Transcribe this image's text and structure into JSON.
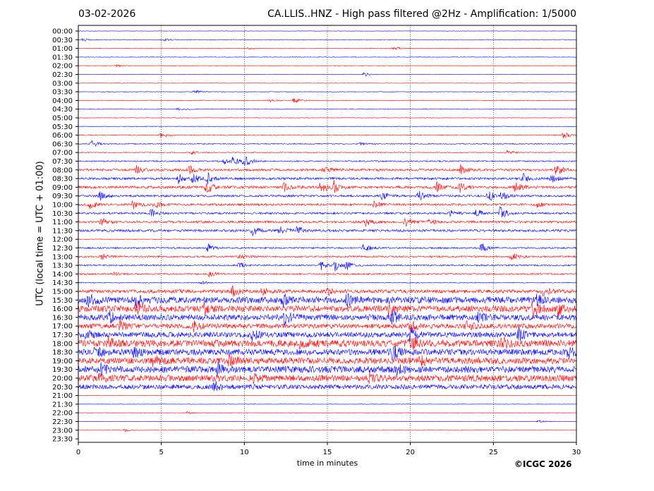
{
  "header": {
    "date": "03-02-2026",
    "title": "CA.LLIS..HNZ - High pass filtered @2Hz - Amplification: 1/5000"
  },
  "footer": {
    "copyright": "©ICGC 2026"
  },
  "chart_data": {
    "type": "line",
    "title": "CA.LLIS..HNZ - High pass filtered @2Hz - Amplification: 1/5000",
    "xlabel": "time in minutes",
    "ylabel": "UTC (local time = UTC + 01:00)",
    "xlim": [
      0,
      30
    ],
    "x_ticks": [
      0,
      5,
      10,
      15,
      20,
      25,
      30
    ],
    "grid": "vertical dotted lines every 5 minutes",
    "series_colors": [
      "#0000ff",
      "#ff0000"
    ],
    "rows": [
      {
        "label": "00:00",
        "color": "#0000ff",
        "level": 0.3,
        "events": []
      },
      {
        "label": "00:30",
        "color": "#0000ff",
        "level": 0.4,
        "events": [
          [
            0.3,
            2
          ],
          [
            5.2,
            2
          ]
        ]
      },
      {
        "label": "01:00",
        "color": "#ff0000",
        "level": 0.4,
        "events": [
          [
            10.3,
            2
          ],
          [
            19.0,
            3
          ]
        ]
      },
      {
        "label": "01:30",
        "color": "#0000ff",
        "level": 0.4,
        "events": []
      },
      {
        "label": "02:00",
        "color": "#ff0000",
        "level": 0.3,
        "events": [
          [
            2.3,
            2
          ]
        ]
      },
      {
        "label": "02:30",
        "color": "#0000ff",
        "level": 0.3,
        "events": [
          [
            17.2,
            3
          ]
        ]
      },
      {
        "label": "03:00",
        "color": "#ff0000",
        "level": 0.3,
        "events": []
      },
      {
        "label": "03:30",
        "color": "#0000ff",
        "level": 0.4,
        "events": [
          [
            7.0,
            3
          ]
        ]
      },
      {
        "label": "04:00",
        "color": "#ff0000",
        "level": 0.5,
        "events": [
          [
            13.0,
            4
          ],
          [
            11.5,
            2
          ]
        ]
      },
      {
        "label": "04:30",
        "color": "#0000ff",
        "level": 0.4,
        "events": [
          [
            6.0,
            2
          ]
        ]
      },
      {
        "label": "05:00",
        "color": "#ff0000",
        "level": 0.4,
        "events": []
      },
      {
        "label": "05:30",
        "color": "#0000ff",
        "level": 0.4,
        "events": []
      },
      {
        "label": "06:00",
        "color": "#ff0000",
        "level": 0.6,
        "events": [
          [
            5.0,
            4
          ],
          [
            29.2,
            6
          ]
        ]
      },
      {
        "label": "06:30",
        "color": "#0000ff",
        "level": 0.7,
        "events": [
          [
            0.8,
            6
          ],
          [
            17.0,
            2
          ]
        ]
      },
      {
        "label": "07:00",
        "color": "#ff0000",
        "level": 0.6,
        "events": [
          [
            6.8,
            3
          ],
          [
            25.8,
            4
          ]
        ]
      },
      {
        "label": "07:30",
        "color": "#0000ff",
        "level": 0.9,
        "events": [
          [
            9.3,
            6
          ],
          [
            10.0,
            9
          ],
          [
            8.8,
            4
          ]
        ]
      },
      {
        "label": "08:00",
        "color": "#ff0000",
        "level": 1.6,
        "events": [
          [
            3.5,
            7
          ],
          [
            6.7,
            6
          ],
          [
            14.8,
            5
          ],
          [
            23.0,
            7
          ],
          [
            28.8,
            9
          ]
        ]
      },
      {
        "label": "08:30",
        "color": "#0000ff",
        "level": 1.6,
        "events": [
          [
            6.0,
            7
          ],
          [
            6.9,
            7
          ],
          [
            7.8,
            8
          ],
          [
            26.8,
            7
          ],
          [
            28.5,
            6
          ]
        ]
      },
      {
        "label": "09:00",
        "color": "#ff0000",
        "level": 1.8,
        "events": [
          [
            7.7,
            10
          ],
          [
            12.4,
            6
          ],
          [
            14.6,
            9
          ],
          [
            15.4,
            8
          ],
          [
            21.6,
            7
          ],
          [
            23.0,
            7
          ],
          [
            26.3,
            8
          ]
        ]
      },
      {
        "label": "09:30",
        "color": "#0000ff",
        "level": 1.5,
        "events": [
          [
            1.3,
            6
          ],
          [
            18.3,
            6
          ],
          [
            20.5,
            7
          ],
          [
            24.7,
            8
          ],
          [
            25.5,
            6
          ]
        ]
      },
      {
        "label": "10:00",
        "color": "#ff0000",
        "level": 1.5,
        "events": [
          [
            0.7,
            6
          ],
          [
            3.3,
            7
          ],
          [
            4.6,
            6
          ],
          [
            17.8,
            5
          ],
          [
            27.6,
            4
          ]
        ]
      },
      {
        "label": "10:30",
        "color": "#0000ff",
        "level": 1.4,
        "events": [
          [
            4.4,
            6
          ],
          [
            22.4,
            5
          ],
          [
            24.0,
            6
          ],
          [
            25.4,
            9
          ]
        ]
      },
      {
        "label": "11:00",
        "color": "#ff0000",
        "level": 1.6,
        "events": [
          [
            1.4,
            5
          ],
          [
            17.3,
            6
          ],
          [
            19.7,
            7
          ],
          [
            21.1,
            5
          ]
        ]
      },
      {
        "label": "11:30",
        "color": "#0000ff",
        "level": 1.7,
        "events": [
          [
            10.5,
            7
          ],
          [
            12.1,
            7
          ],
          [
            13.2,
            6
          ]
        ]
      },
      {
        "label": "12:00",
        "color": "#ff0000",
        "level": 0.5,
        "events": []
      },
      {
        "label": "12:30",
        "color": "#0000ff",
        "level": 1.1,
        "events": [
          [
            7.8,
            6
          ],
          [
            17.2,
            6
          ],
          [
            24.3,
            7
          ]
        ]
      },
      {
        "label": "13:00",
        "color": "#ff0000",
        "level": 1.2,
        "events": [
          [
            1.4,
            5
          ],
          [
            26.1,
            8
          ],
          [
            9.7,
            3
          ]
        ]
      },
      {
        "label": "13:30",
        "color": "#0000ff",
        "level": 1.0,
        "events": [
          [
            9.7,
            5
          ],
          [
            14.6,
            8
          ],
          [
            15.4,
            9
          ],
          [
            16.1,
            7
          ]
        ]
      },
      {
        "label": "14:00",
        "color": "#ff0000",
        "level": 1.0,
        "events": [
          [
            7.9,
            5
          ],
          [
            2.1,
            3
          ]
        ]
      },
      {
        "label": "14:30",
        "color": "#0000ff",
        "level": 0.6,
        "events": [
          [
            7.4,
            3
          ]
        ]
      },
      {
        "label": "15:00",
        "color": "#ff0000",
        "level": 2.4,
        "events": [
          [
            9.3,
            7
          ],
          [
            11.0,
            6
          ],
          [
            15.0,
            5
          ],
          [
            28.0,
            6
          ]
        ]
      },
      {
        "label": "15:30",
        "color": "#0000ff",
        "level": 4.5,
        "events": [
          [
            0.6,
            9
          ],
          [
            3.5,
            9
          ],
          [
            12.3,
            8
          ],
          [
            16.2,
            10
          ],
          [
            27.5,
            8
          ]
        ]
      },
      {
        "label": "16:00",
        "color": "#ff0000",
        "level": 4.2,
        "events": [
          [
            3.5,
            9
          ],
          [
            7.6,
            8
          ],
          [
            18.7,
            9
          ],
          [
            27.4,
            11
          ],
          [
            28.9,
            10
          ]
        ]
      },
      {
        "label": "16:30",
        "color": "#0000ff",
        "level": 4.0,
        "events": [
          [
            1.9,
            8
          ],
          [
            12.4,
            10
          ],
          [
            18.9,
            8
          ],
          [
            24.1,
            7
          ]
        ]
      },
      {
        "label": "17:00",
        "color": "#ff0000",
        "level": 3.3,
        "events": [
          [
            2.5,
            7
          ],
          [
            6.9,
            7
          ],
          [
            20.0,
            8
          ],
          [
            23.4,
            6
          ]
        ]
      },
      {
        "label": "17:30",
        "color": "#0000ff",
        "level": 3.6,
        "events": [
          [
            0.5,
            6
          ],
          [
            10.4,
            8
          ],
          [
            20.0,
            11
          ],
          [
            26.5,
            9
          ]
        ]
      },
      {
        "label": "18:00",
        "color": "#ff0000",
        "level": 4.8,
        "events": [
          [
            1.8,
            9
          ],
          [
            13.4,
            8
          ],
          [
            20.0,
            10
          ],
          [
            25.5,
            7
          ]
        ]
      },
      {
        "label": "18:30",
        "color": "#0000ff",
        "level": 4.2,
        "events": [
          [
            1.0,
            9
          ],
          [
            3.4,
            7
          ],
          [
            18.9,
            10
          ],
          [
            29.5,
            7
          ]
        ]
      },
      {
        "label": "19:00",
        "color": "#ff0000",
        "level": 4.3,
        "events": [
          [
            4.5,
            7
          ],
          [
            9.1,
            7
          ],
          [
            20.6,
            8
          ]
        ]
      },
      {
        "label": "19:30",
        "color": "#0000ff",
        "level": 4.6,
        "events": [
          [
            1.3,
            8
          ],
          [
            8.4,
            8
          ],
          [
            19.2,
            6
          ]
        ]
      },
      {
        "label": "20:00",
        "color": "#ff0000",
        "level": 4.4,
        "events": [
          [
            1.2,
            7
          ],
          [
            10.5,
            7
          ],
          [
            17.5,
            6
          ]
        ]
      },
      {
        "label": "20:30",
        "color": "#0000ff",
        "level": 3.2,
        "events": [
          [
            8.2,
            7
          ]
        ]
      },
      {
        "label": "21:00",
        "color": "#ff0000",
        "level": 0.3,
        "events": []
      },
      {
        "label": "21:30",
        "color": "#0000ff",
        "level": 0.3,
        "events": []
      },
      {
        "label": "22:00",
        "color": "#ff0000",
        "level": 0.3,
        "events": [
          [
            6.6,
            2
          ]
        ]
      },
      {
        "label": "22:30",
        "color": "#0000ff",
        "level": 0.3,
        "events": [
          [
            27.7,
            2
          ]
        ]
      },
      {
        "label": "23:00",
        "color": "#ff0000",
        "level": 0.3,
        "events": [
          [
            2.8,
            2
          ]
        ]
      },
      {
        "label": "23:30",
        "color": "#0000ff",
        "level": 0.0,
        "events": []
      }
    ]
  }
}
